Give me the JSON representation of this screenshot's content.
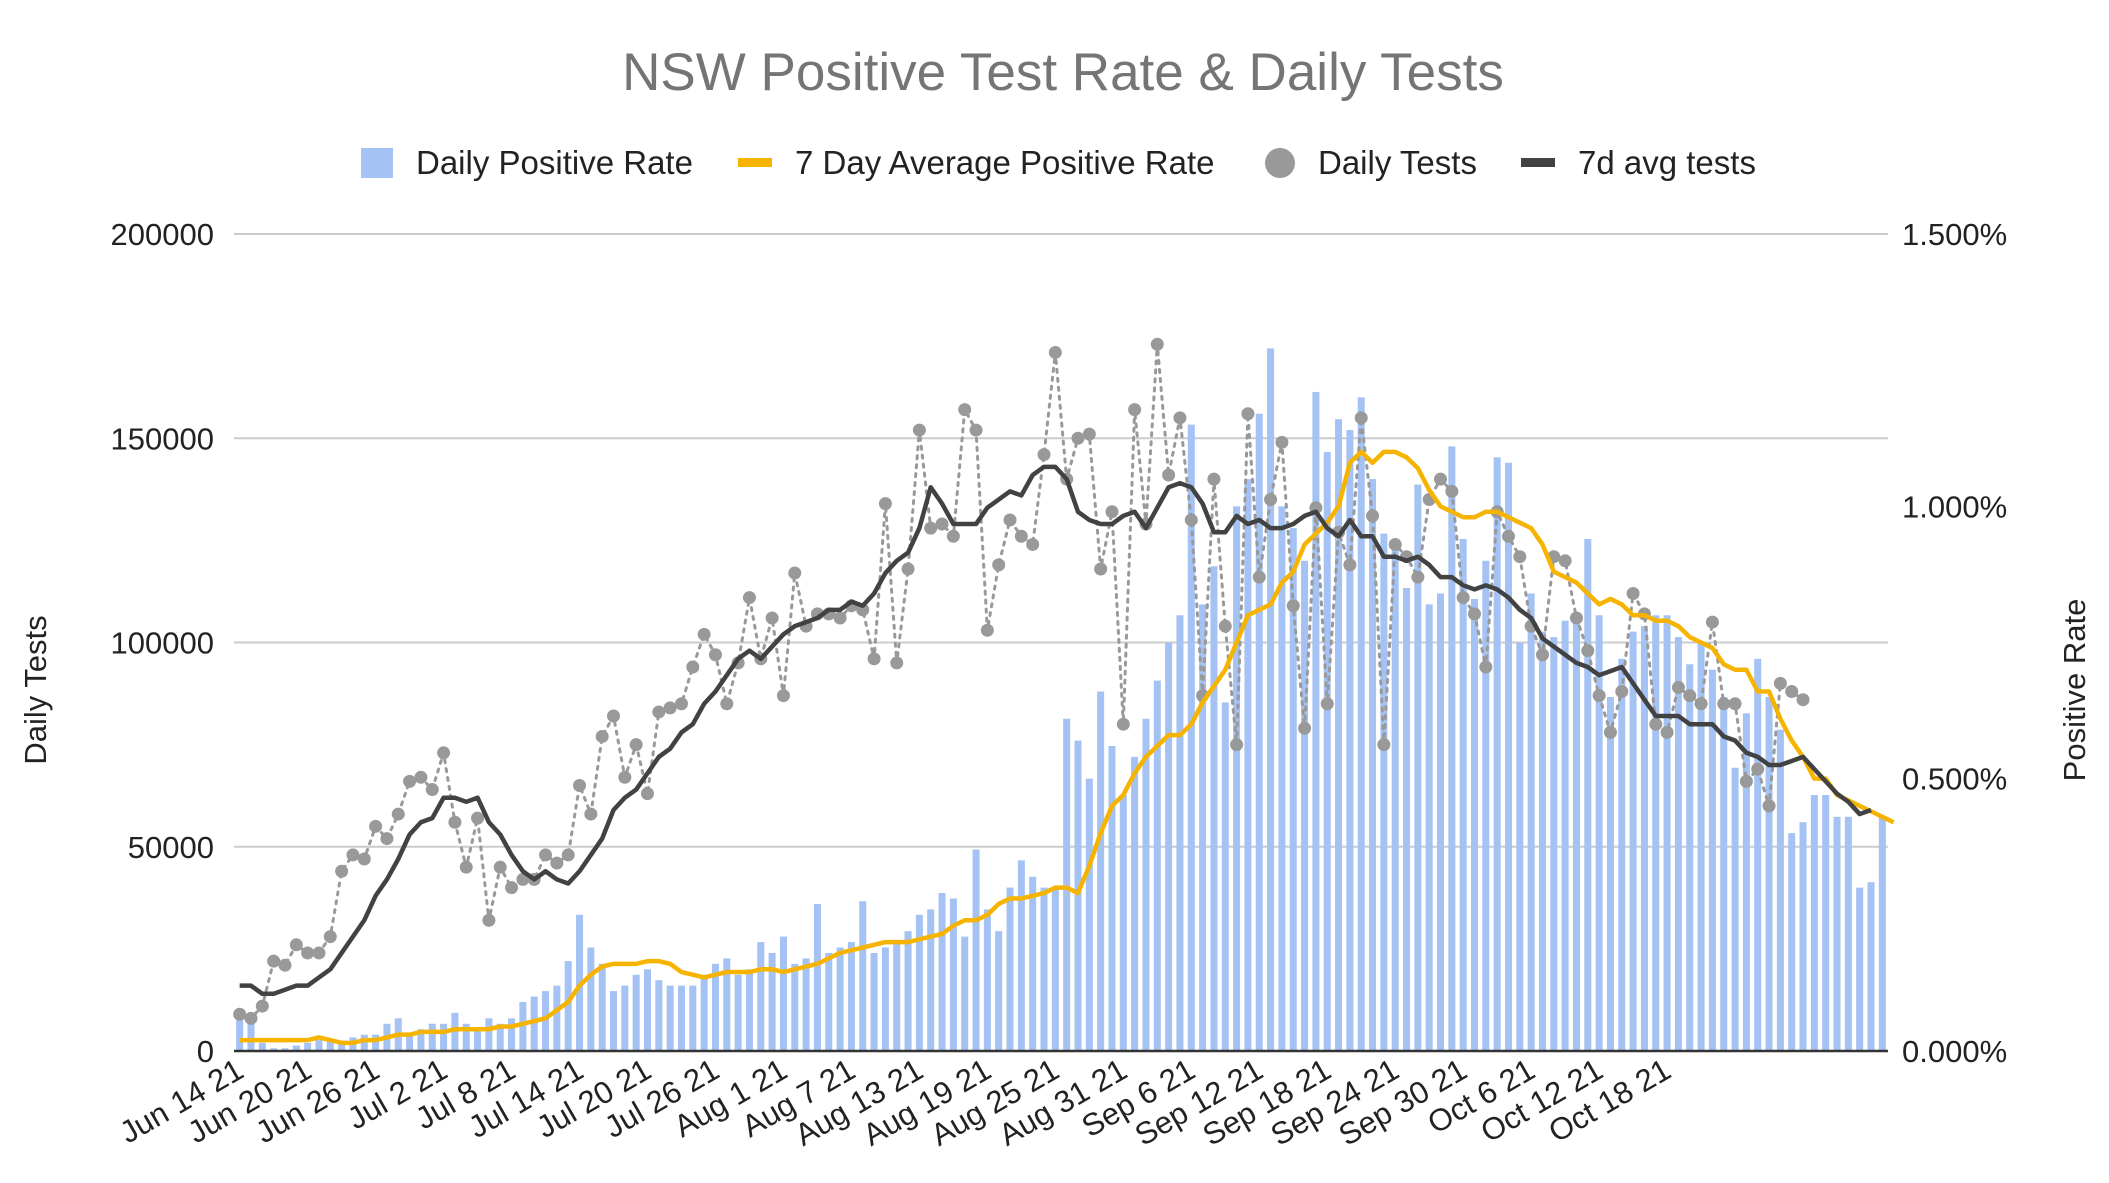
{
  "chart_data": {
    "type": "combo",
    "title": "NSW Positive Test Rate & Daily Tests",
    "y_left_label": "Daily Tests",
    "y_right_label": "Positive Rate",
    "y_left_range": [
      0,
      200000
    ],
    "y_right_range": [
      0,
      1.5
    ],
    "y_left_ticks": [
      "0",
      "50000",
      "100000",
      "150000",
      "200000"
    ],
    "y_right_ticks": [
      "0.000%",
      "0.500%",
      "1.000%",
      "1.500%"
    ],
    "x_tick_labels": [
      "Jun 14 21",
      "Jun 20 21",
      "Jun 26 21",
      "Jul 2 21",
      "Jul 8 21",
      "Jul 14 21",
      "Jul 20 21",
      "Jul 26 21",
      "Aug 1 21",
      "Aug 7 21",
      "Aug 13 21",
      "Aug 19 21",
      "Aug 25 21",
      "Aug 31 21",
      "Sep 6 21",
      "Sep 12 21",
      "Sep 18 21",
      "Sep 24 21",
      "Sep 30 21",
      "Oct 6 21",
      "Oct 12 21",
      "Oct 18 21"
    ],
    "legend_position": "top",
    "series": [
      {
        "name": "Daily Positive Rate",
        "type": "bar",
        "axis": "right",
        "color": "#a4c2f4",
        "values": [
          0.065,
          0.06,
          0.015,
          0.005,
          0.005,
          0.01,
          0.015,
          0.02,
          0.02,
          0.015,
          0.025,
          0.03,
          0.03,
          0.05,
          0.06,
          0.03,
          0.04,
          0.05,
          0.05,
          0.07,
          0.05,
          0.04,
          0.06,
          0.05,
          0.06,
          0.09,
          0.1,
          0.11,
          0.12,
          0.165,
          0.25,
          0.19,
          0.16,
          0.11,
          0.12,
          0.14,
          0.15,
          0.13,
          0.12,
          0.12,
          0.12,
          0.14,
          0.16,
          0.17,
          0.14,
          0.15,
          0.2,
          0.18,
          0.21,
          0.16,
          0.17,
          0.27,
          0.18,
          0.19,
          0.2,
          0.275,
          0.18,
          0.19,
          0.2,
          0.22,
          0.25,
          0.26,
          0.29,
          0.28,
          0.21,
          0.37,
          0.26,
          0.22,
          0.3,
          0.35,
          0.32,
          0.3,
          0.3,
          0.61,
          0.57,
          0.5,
          0.66,
          0.56,
          0.47,
          0.54,
          0.61,
          0.68,
          0.75,
          0.8,
          1.15,
          0.82,
          0.89,
          0.64,
          1.0,
          1.05,
          1.17,
          1.29,
          1.0,
          0.96,
          0.9,
          1.21,
          1.1,
          1.16,
          1.14,
          1.2,
          1.05,
          0.95,
          0.93,
          0.85,
          1.04,
          0.82,
          0.84,
          1.11,
          0.94,
          0.83,
          0.9,
          1.09,
          1.08,
          0.75,
          0.84,
          0.77,
          0.76,
          0.79,
          0.79,
          0.94,
          0.8,
          0.65,
          0.72,
          0.77,
          0.78,
          0.8,
          0.8,
          0.76,
          0.71,
          0.75,
          0.7,
          0.65,
          0.52,
          0.62,
          0.72,
          0.65,
          0.59,
          0.4,
          0.42,
          0.47,
          0.47,
          0.43,
          0.43,
          0.3,
          0.31,
          0.43
        ]
      },
      {
        "name": "7 Day Average Positive Rate",
        "type": "line",
        "axis": "right",
        "color": "#f6b400",
        "values": [
          0.02,
          0.02,
          0.02,
          0.02,
          0.02,
          0.02,
          0.02,
          0.025,
          0.02,
          0.015,
          0.015,
          0.02,
          0.02,
          0.025,
          0.03,
          0.03,
          0.035,
          0.035,
          0.035,
          0.04,
          0.04,
          0.04,
          0.04,
          0.045,
          0.045,
          0.05,
          0.055,
          0.06,
          0.075,
          0.09,
          0.12,
          0.14,
          0.155,
          0.16,
          0.16,
          0.16,
          0.165,
          0.165,
          0.16,
          0.145,
          0.14,
          0.135,
          0.14,
          0.145,
          0.145,
          0.145,
          0.15,
          0.15,
          0.145,
          0.15,
          0.155,
          0.16,
          0.17,
          0.18,
          0.185,
          0.19,
          0.195,
          0.2,
          0.2,
          0.2,
          0.205,
          0.21,
          0.215,
          0.23,
          0.24,
          0.24,
          0.25,
          0.27,
          0.28,
          0.28,
          0.285,
          0.29,
          0.3,
          0.3,
          0.29,
          0.34,
          0.4,
          0.45,
          0.47,
          0.51,
          0.54,
          0.56,
          0.58,
          0.58,
          0.6,
          0.64,
          0.67,
          0.7,
          0.75,
          0.8,
          0.81,
          0.82,
          0.86,
          0.88,
          0.93,
          0.95,
          0.97,
          1.0,
          1.08,
          1.1,
          1.08,
          1.1,
          1.1,
          1.09,
          1.07,
          1.03,
          1.0,
          0.99,
          0.98,
          0.98,
          0.99,
          0.99,
          0.98,
          0.97,
          0.96,
          0.93,
          0.88,
          0.87,
          0.86,
          0.84,
          0.82,
          0.83,
          0.82,
          0.8,
          0.8,
          0.79,
          0.79,
          0.78,
          0.76,
          0.75,
          0.74,
          0.71,
          0.7,
          0.7,
          0.66,
          0.66,
          0.61,
          0.57,
          0.54,
          0.5,
          0.5,
          0.47,
          0.46,
          0.45,
          0.44,
          0.43,
          0.42
        ]
      },
      {
        "name": "Daily Tests",
        "type": "scatter-dotted",
        "axis": "left",
        "color": "#999999",
        "values": [
          9000,
          8000,
          11000,
          22000,
          21000,
          26000,
          24000,
          24000,
          28000,
          44000,
          48000,
          47000,
          55000,
          52000,
          58000,
          66000,
          67000,
          64000,
          73000,
          56000,
          45000,
          57000,
          32000,
          45000,
          40000,
          42000,
          42000,
          48000,
          46000,
          48000,
          65000,
          58000,
          77000,
          82000,
          67000,
          75000,
          63000,
          83000,
          84000,
          85000,
          94000,
          102000,
          97000,
          85000,
          95000,
          111000,
          96000,
          106000,
          87000,
          117000,
          104000,
          107000,
          107000,
          106000,
          109000,
          108000,
          96000,
          134000,
          95000,
          118000,
          152000,
          128000,
          129000,
          126000,
          157000,
          152000,
          103000,
          119000,
          130000,
          126000,
          124000,
          146000,
          171000,
          140000,
          150000,
          151000,
          118000,
          132000,
          80000,
          157000,
          129000,
          173000,
          141000,
          155000,
          130000,
          87000,
          140000,
          104000,
          75000,
          156000,
          116000,
          135000,
          149000,
          109000,
          79000,
          133000,
          85000,
          127000,
          119000,
          155000,
          131000,
          75000,
          124000,
          121000,
          116000,
          135000,
          140000,
          137000,
          111000,
          107000,
          94000,
          132000,
          126000,
          121000,
          104000,
          97000,
          121000,
          120000,
          106000,
          98000,
          87000,
          78000,
          88000,
          112000,
          107000,
          80000,
          78000,
          89000,
          87000,
          85000,
          105000,
          85000,
          85000,
          66000,
          69000,
          60000,
          90000,
          88000,
          86000
        ],
        "marker_dates_start_index": 0
      },
      {
        "name": "7d avg tests",
        "type": "line",
        "axis": "left",
        "color": "#424242",
        "values": [
          16000,
          16000,
          14000,
          14000,
          15000,
          16000,
          16000,
          18000,
          20000,
          24000,
          28000,
          32000,
          38000,
          42000,
          47000,
          53000,
          56000,
          57000,
          62000,
          62000,
          61000,
          62000,
          56000,
          53000,
          48000,
          44000,
          42000,
          44000,
          42000,
          41000,
          44000,
          48000,
          52000,
          59000,
          62000,
          64000,
          68000,
          72000,
          74000,
          78000,
          80000,
          85000,
          88000,
          92000,
          96000,
          98000,
          96000,
          99000,
          102000,
          104000,
          105000,
          106000,
          108000,
          108000,
          110000,
          109000,
          112000,
          117000,
          120000,
          122000,
          128000,
          138000,
          134000,
          129000,
          129000,
          129000,
          133000,
          135000,
          137000,
          136000,
          141000,
          143000,
          143000,
          140000,
          132000,
          130000,
          129000,
          129000,
          131000,
          132000,
          128000,
          133000,
          138000,
          139000,
          138000,
          134000,
          127000,
          127000,
          131000,
          129000,
          130000,
          128000,
          128000,
          129000,
          131000,
          132000,
          128000,
          126000,
          130000,
          126000,
          126000,
          121000,
          121000,
          120000,
          121000,
          119000,
          116000,
          116000,
          114000,
          113000,
          114000,
          113000,
          111000,
          108000,
          106000,
          101000,
          99000,
          97000,
          95000,
          94000,
          92000,
          93000,
          94000,
          90000,
          86000,
          82000,
          82000,
          82000,
          80000,
          80000,
          80000,
          77000,
          76000,
          73000,
          72000,
          70000,
          70000,
          71000,
          72000,
          69000,
          66000,
          63000,
          61000,
          58000,
          59000
        ]
      }
    ]
  },
  "legend": {
    "items": [
      "Daily Positive Rate",
      "7 Day Average Positive Rate",
      "Daily Tests",
      "7d avg tests"
    ]
  }
}
